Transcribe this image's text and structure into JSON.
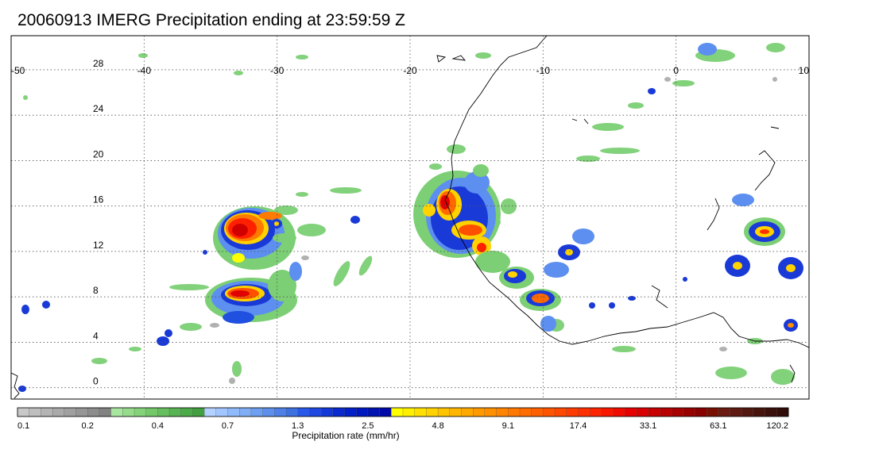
{
  "title": "20060913 IMERG Precipitation ending at 23:59:59 Z",
  "map": {
    "lon_range": [
      -50,
      10
    ],
    "lat_range": [
      -1,
      31
    ],
    "lon_ticks": [
      "-50",
      "-40",
      "-30",
      "-20",
      "-10",
      "0",
      "10"
    ],
    "lat_ticks": [
      "0",
      "4",
      "8",
      "12",
      "16",
      "20",
      "24",
      "28"
    ],
    "grid": "dotted",
    "background": "#ffffff",
    "coastline_color": "#000000"
  },
  "colorbar": {
    "label": "Precipitation rate (mm/hr)",
    "tick_labels": [
      "0.1",
      "0.2",
      "0.4",
      "0.7",
      "1.3",
      "2.5",
      "4.8",
      "9.1",
      "17.4",
      "33.1",
      "63.1",
      "120.2"
    ],
    "colors": [
      "#c8c8c8",
      "#bebebe",
      "#b4b4b4",
      "#aaaaaa",
      "#a0a0a0",
      "#969696",
      "#8c8c8c",
      "#828282",
      "#a8e6a0",
      "#96dc8c",
      "#84d27a",
      "#74c86a",
      "#66be5e",
      "#58b452",
      "#4caa48",
      "#42a040",
      "#b4d2ff",
      "#a2c6ff",
      "#90bbfa",
      "#80aef5",
      "#6e9ff0",
      "#5e90eb",
      "#4e80e6",
      "#3e70e0",
      "#2858e8",
      "#1e48e0",
      "#1438d8",
      "#0a2ad0",
      "#0420c8",
      "#0018c0",
      "#0012b0",
      "#0008a8",
      "#ffff00",
      "#fff000",
      "#ffe000",
      "#ffd200",
      "#ffc400",
      "#ffb600",
      "#ffa800",
      "#ff9a00",
      "#ff9000",
      "#ff8400",
      "#ff7800",
      "#ff6c00",
      "#ff6000",
      "#ff5400",
      "#ff4800",
      "#ff3c00",
      "#ff3000",
      "#ff2400",
      "#f81800",
      "#f00c00",
      "#e80000",
      "#d80000",
      "#c80000",
      "#b80000",
      "#a80000",
      "#980000",
      "#880000",
      "#781000",
      "#6a1a10",
      "#5e1a12",
      "#521810",
      "#46140c",
      "#3c100a",
      "#320c08"
    ]
  }
}
